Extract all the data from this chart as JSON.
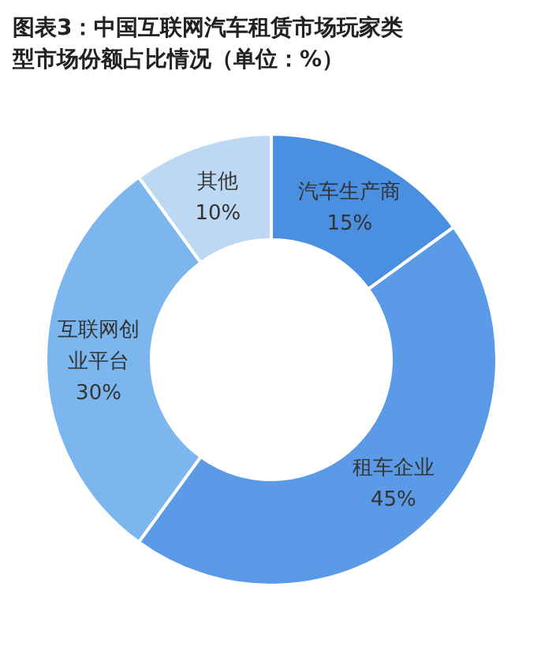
{
  "chart_data": {
    "type": "donut",
    "title": "图表3：中国互联网汽车租赁市场玩家类型市场份额占比情况（单位：%）",
    "categories": [
      "汽车生产商",
      "租车企业",
      "互联网创业平台",
      "其他"
    ],
    "values": [
      15,
      45,
      30,
      10
    ],
    "value_labels": [
      "15%",
      "45%",
      "30%",
      "10%"
    ],
    "colors": [
      "#4a8fe0",
      "#5a9ae6",
      "#7cb6ef",
      "#bdd8f3"
    ]
  }
}
